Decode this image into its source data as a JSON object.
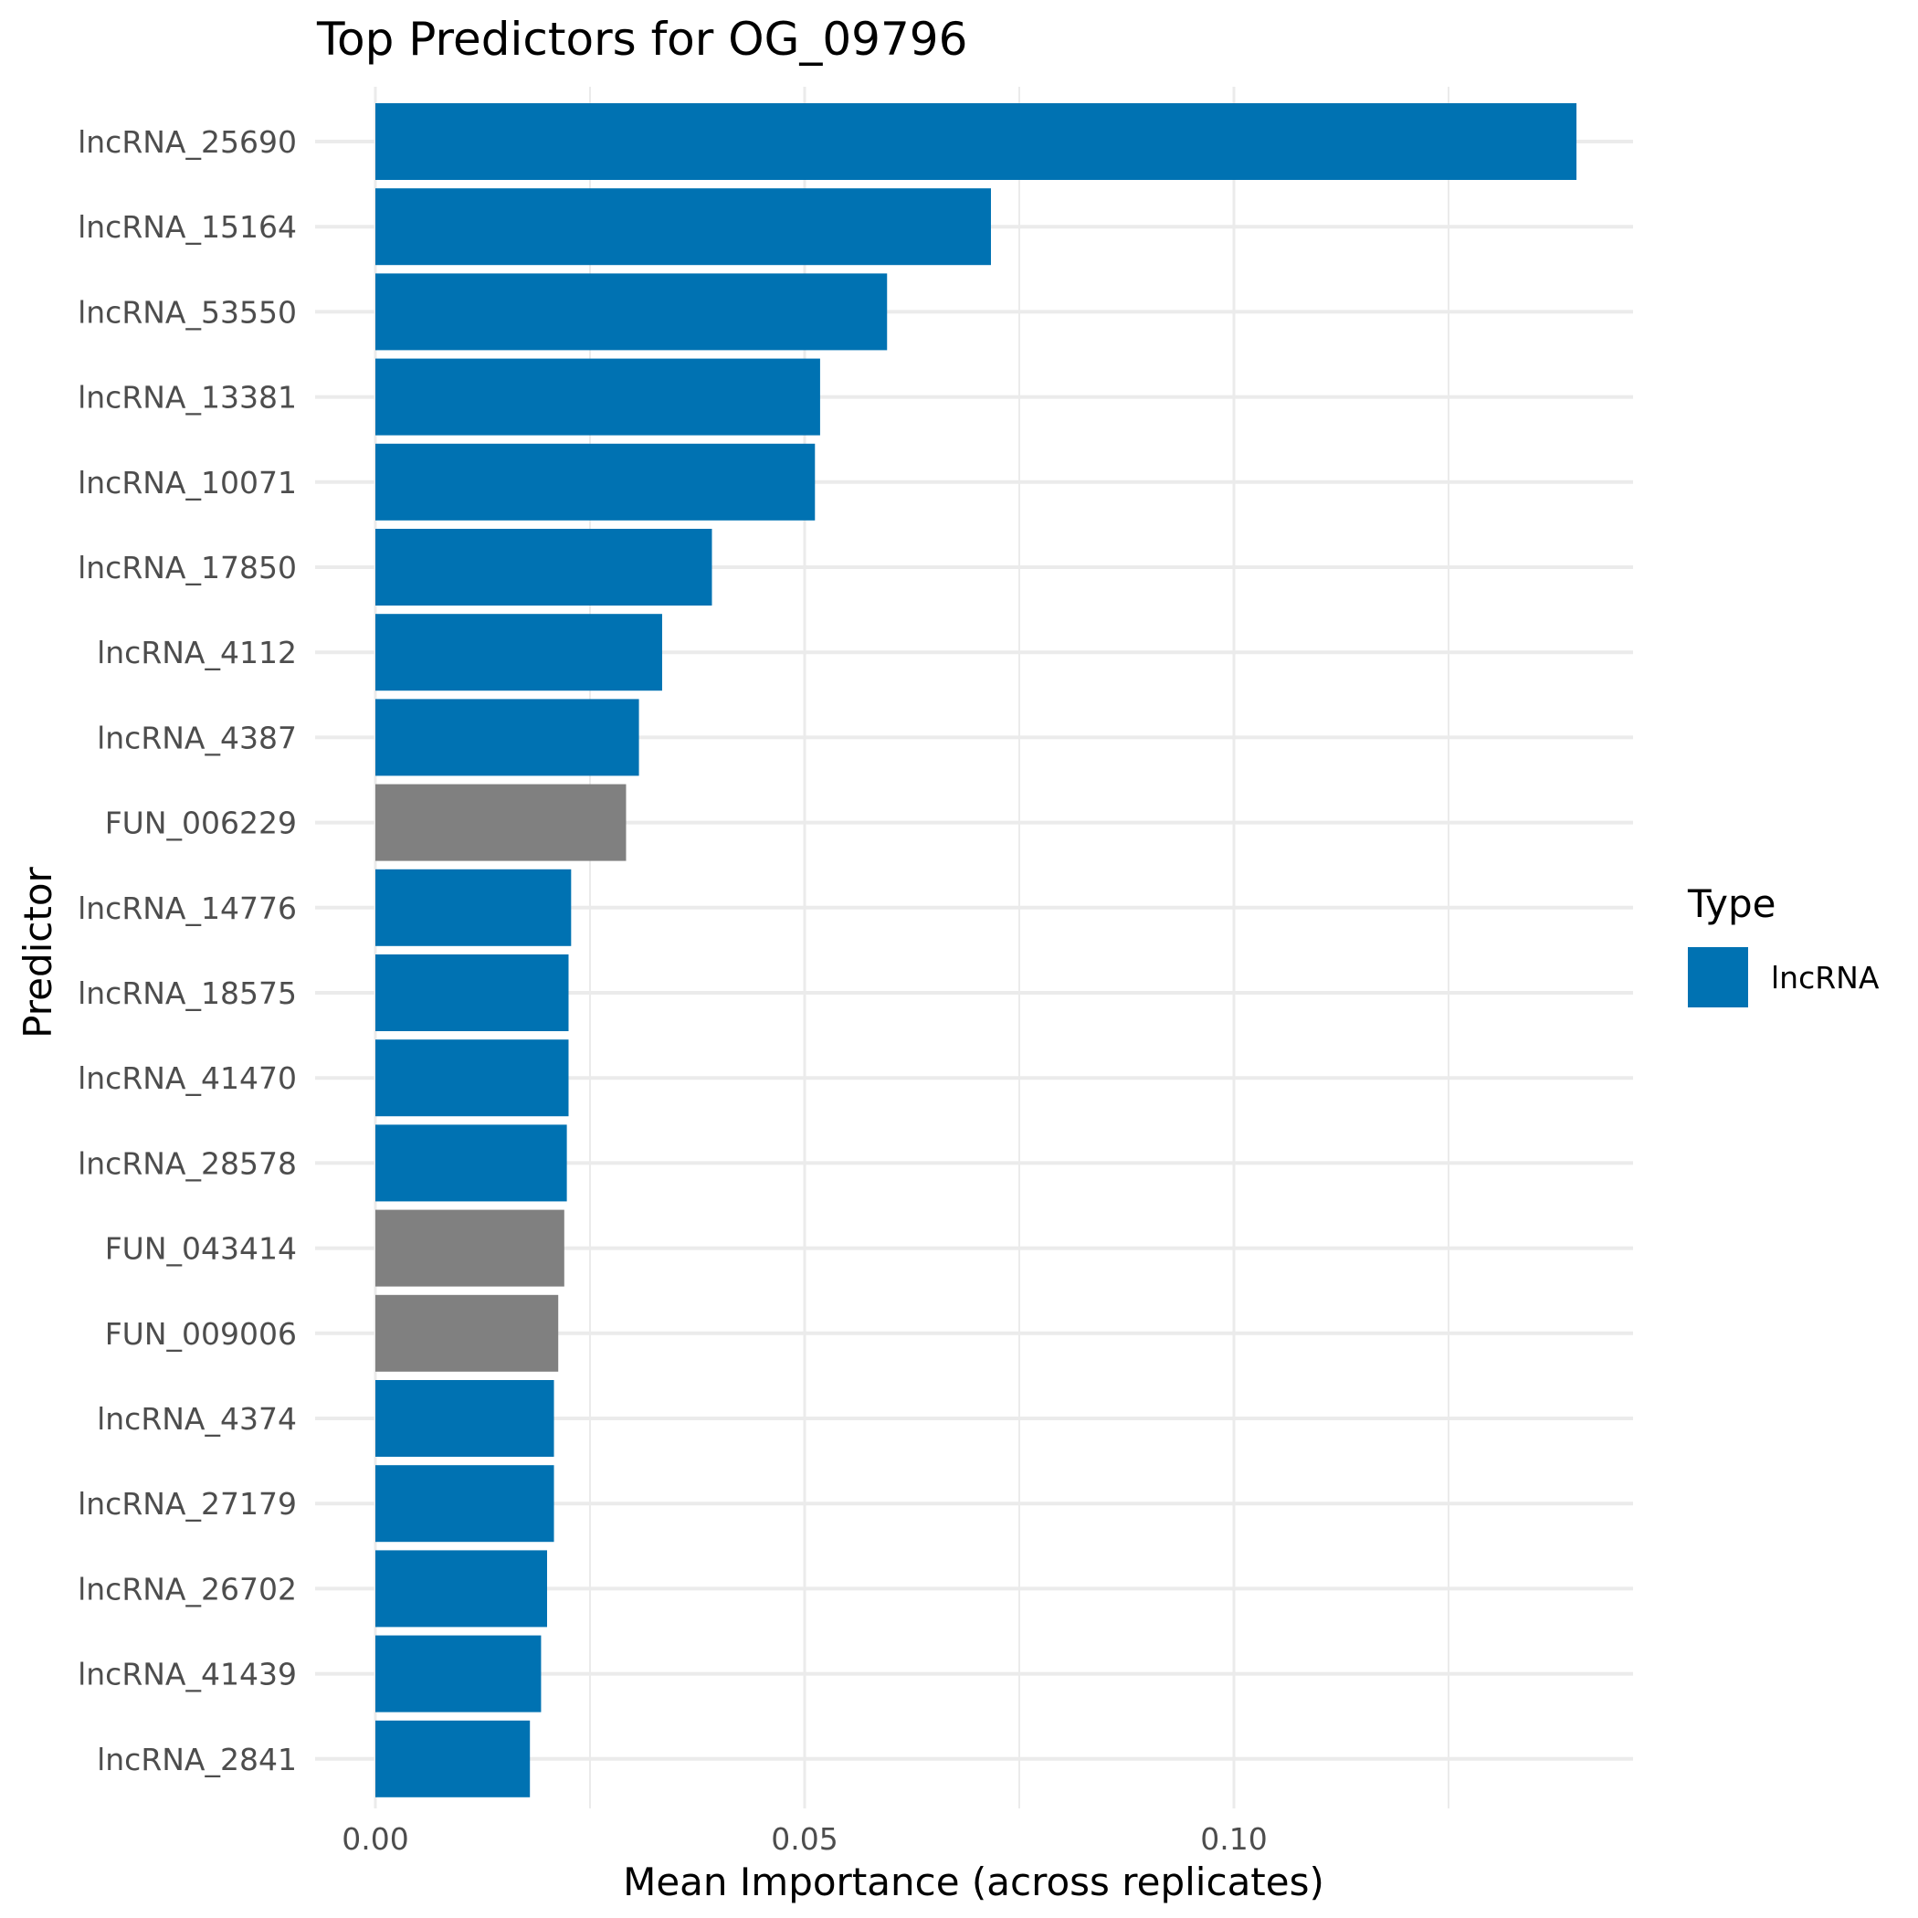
{
  "chart_data": {
    "type": "bar",
    "orientation": "horizontal",
    "title": "Top Predictors for OG_09796",
    "xlabel": "Mean Importance (across replicates)",
    "ylabel": "Predictor",
    "xlim": [
      0,
      0.147
    ],
    "x_ticks": [
      {
        "value": 0,
        "label": "0.00"
      },
      {
        "value": 0.05,
        "label": "0.05"
      },
      {
        "value": 0.1,
        "label": "0.10"
      }
    ],
    "grid": true,
    "legend": {
      "title": "Type",
      "placement": "right",
      "entries": [
        {
          "label": "lncRNA",
          "color": "#0072B2"
        }
      ]
    },
    "colors": {
      "lncRNA": "#0072B2",
      "other": "#808080"
    },
    "categories": [
      "lncRNA_25690",
      "lncRNA_15164",
      "lncRNA_53550",
      "lncRNA_13381",
      "lncRNA_10071",
      "lncRNA_17850",
      "lncRNA_4112",
      "lncRNA_4387",
      "FUN_006229",
      "lncRNA_14776",
      "lncRNA_18575",
      "lncRNA_41470",
      "lncRNA_28578",
      "FUN_043414",
      "FUN_009006",
      "lncRNA_4374",
      "lncRNA_27179",
      "lncRNA_26702",
      "lncRNA_41439",
      "lncRNA_2841"
    ],
    "types": [
      "lncRNA",
      "lncRNA",
      "lncRNA",
      "lncRNA",
      "lncRNA",
      "lncRNA",
      "lncRNA",
      "lncRNA",
      "other",
      "lncRNA",
      "lncRNA",
      "lncRNA",
      "lncRNA",
      "other",
      "other",
      "lncRNA",
      "lncRNA",
      "lncRNA",
      "lncRNA",
      "lncRNA"
    ],
    "values": [
      0.1399,
      0.0717,
      0.0596,
      0.0518,
      0.0512,
      0.0392,
      0.0334,
      0.0307,
      0.0292,
      0.0228,
      0.0225,
      0.0225,
      0.0223,
      0.022,
      0.0213,
      0.0208,
      0.0208,
      0.02,
      0.0193,
      0.018
    ]
  }
}
